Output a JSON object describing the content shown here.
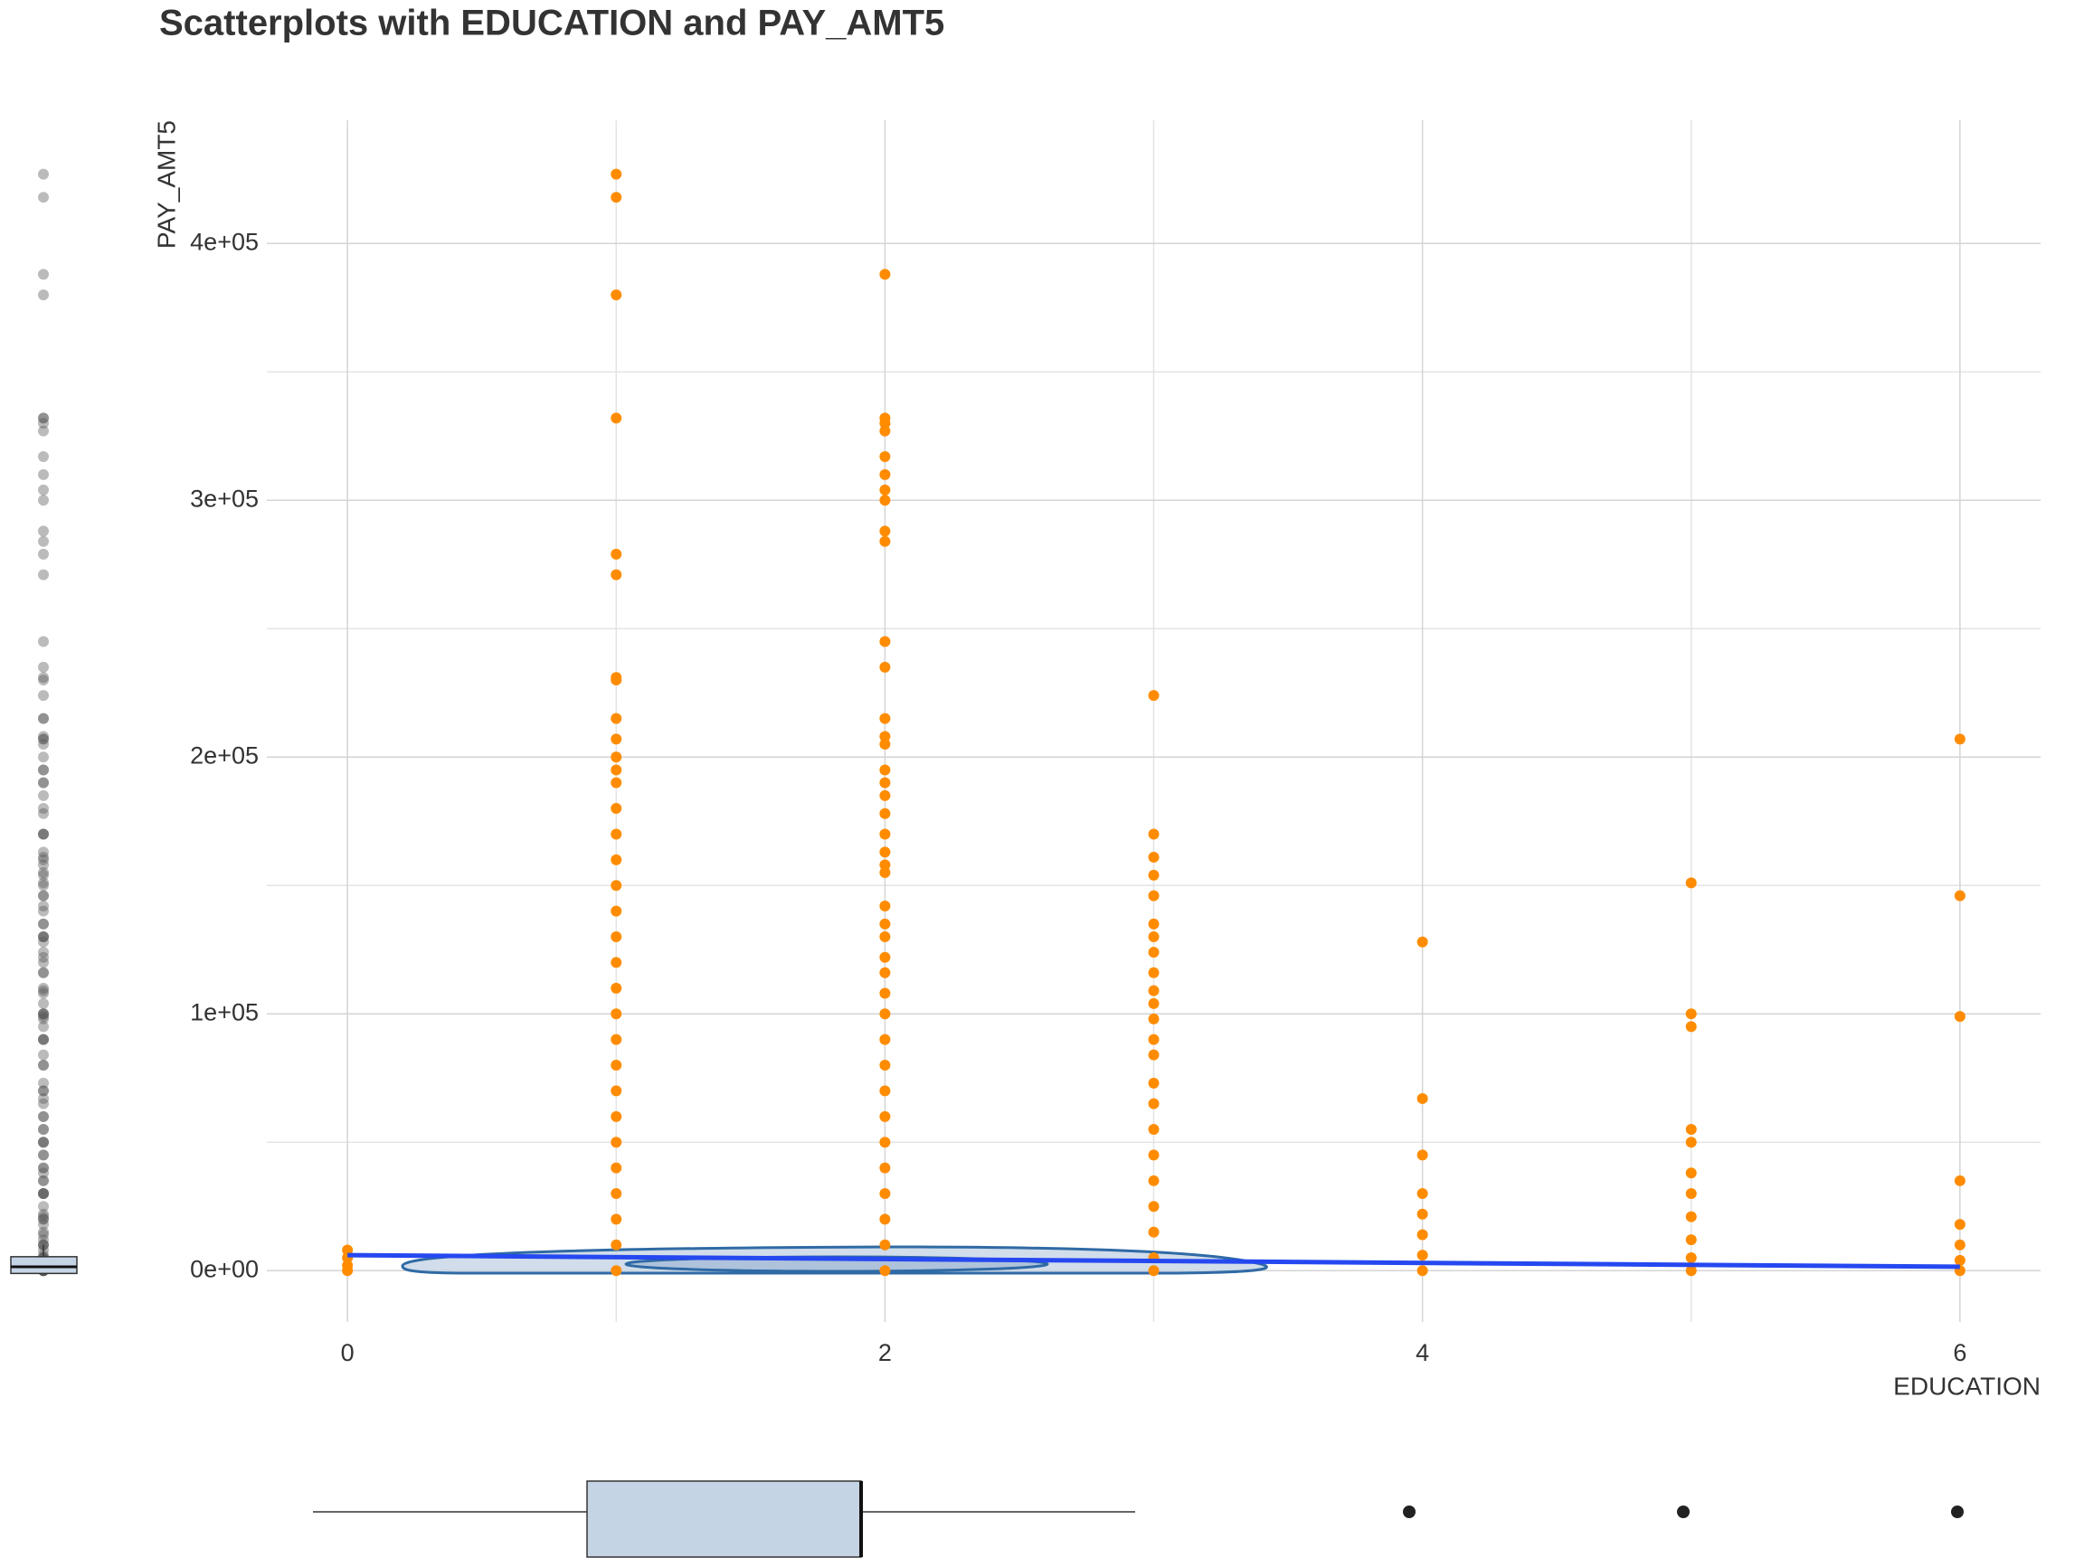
{
  "chart_data": {
    "type": "scatter",
    "title": "Scatterplots with EDUCATION and PAY_AMT5",
    "x_label": "EDUCATION",
    "y_label": "PAY_AMT5",
    "xlim": [
      -0.3,
      6.3
    ],
    "ylim": [
      -20000,
      448000
    ],
    "xticks": [
      0,
      2,
      4,
      6
    ],
    "yticks": [
      {
        "value": 0,
        "label": "0e+00"
      },
      {
        "value": 100000,
        "label": "1e+05"
      },
      {
        "value": 200000,
        "label": "2e+05"
      },
      {
        "value": 300000,
        "label": "3e+05"
      },
      {
        "value": 400000,
        "label": "4e+05"
      }
    ],
    "grid": true,
    "color": "#ff8c00",
    "groups": [
      {
        "x": 0,
        "values": [
          8000,
          5000,
          2000,
          0
        ]
      },
      {
        "x": 1,
        "values": [
          427000,
          418000,
          380000,
          332000,
          279000,
          271000,
          231000,
          230000,
          215000,
          207000,
          200000,
          195000,
          190000,
          180000,
          170000,
          160000,
          150000,
          140000,
          130000,
          120000,
          110000,
          100000,
          90000,
          80000,
          70000,
          60000,
          50000,
          40000,
          30000,
          20000,
          10000,
          0
        ]
      },
      {
        "x": 2,
        "values": [
          388000,
          332000,
          330000,
          327000,
          317000,
          310000,
          304000,
          300000,
          288000,
          284000,
          245000,
          235000,
          215000,
          208000,
          205000,
          195000,
          190000,
          185000,
          178000,
          170000,
          163000,
          158000,
          155000,
          142000,
          135000,
          130000,
          122000,
          116000,
          108000,
          100000,
          90000,
          80000,
          70000,
          60000,
          50000,
          40000,
          30000,
          20000,
          10000,
          0
        ]
      },
      {
        "x": 3,
        "values": [
          224000,
          170000,
          161000,
          154000,
          146000,
          135000,
          130000,
          124000,
          116000,
          109000,
          104000,
          98000,
          90000,
          84000,
          73000,
          65000,
          55000,
          45000,
          35000,
          25000,
          15000,
          5000,
          0
        ]
      },
      {
        "x": 4,
        "values": [
          128000,
          67000,
          45000,
          30000,
          22000,
          14000,
          6000,
          0
        ]
      },
      {
        "x": 5,
        "values": [
          151000,
          100000,
          95000,
          55000,
          50000,
          38000,
          30000,
          21000,
          12000,
          5000,
          0
        ]
      },
      {
        "x": 6,
        "values": [
          207000,
          146000,
          99000,
          35000,
          18000,
          10000,
          4000,
          0
        ]
      }
    ],
    "trend": {
      "x": [
        0,
        6
      ],
      "y": [
        6000,
        1500
      ],
      "color": "#2548f0"
    },
    "x_box": {
      "whisker_low": 0,
      "q1": 1,
      "median": 2,
      "q3": 2,
      "whisker_high": 3,
      "outliers": [
        4,
        5,
        6
      ],
      "color": "#c5d4e5"
    },
    "y_box": {
      "whisker_low": 0,
      "q1": 300,
      "median": 1500,
      "q3": 4000,
      "whisker_high": 10000,
      "color": "#c5d4e5"
    }
  }
}
